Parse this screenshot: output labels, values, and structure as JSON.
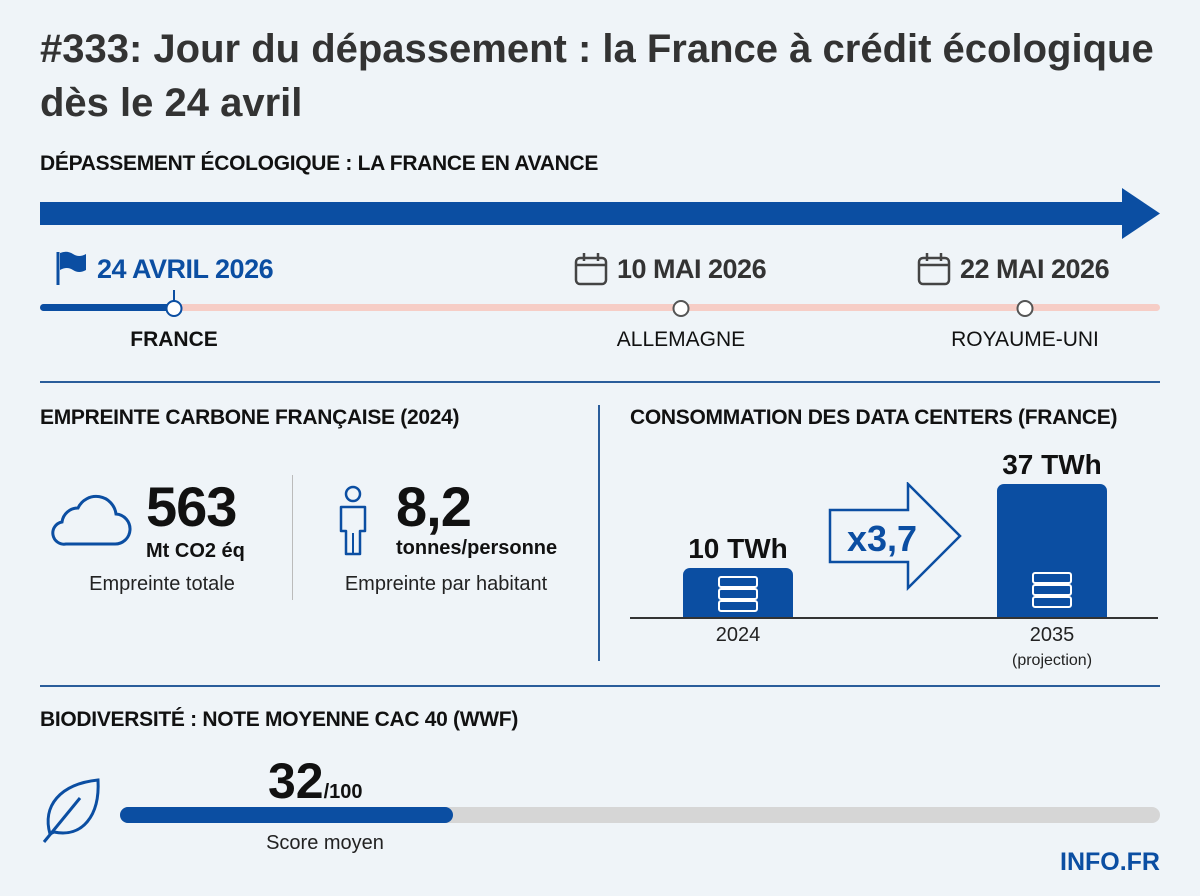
{
  "title": "#333: Jour du dépassement : la France à crédit écologique dès le 24 avril",
  "timeline": {
    "heading": "DÉPASSEMENT ÉCOLOGIQUE : LA FRANCE EN AVANCE",
    "events": [
      {
        "date": "24 AVRIL 2026",
        "country": "FRANCE",
        "icon": "flag-icon",
        "highlight": true
      },
      {
        "date": "10 MAI 2026",
        "country": "ALLEMAGNE",
        "icon": "calendar-icon"
      },
      {
        "date": "22 MAI 2026",
        "country": "ROYAUME-UNI",
        "icon": "calendar-icon"
      }
    ]
  },
  "carbon": {
    "heading": "EMPREINTE CARBONE FRANÇAISE (2024)",
    "total": {
      "value": "563",
      "unit": "Mt CO2 éq",
      "caption": "Empreinte totale",
      "icon": "cloud-icon"
    },
    "per_capita": {
      "value": "8,2",
      "unit": "tonnes/personne",
      "caption": "Empreinte par habitant",
      "icon": "person-icon"
    }
  },
  "datacenters": {
    "heading": "CONSOMMATION DES DATA CENTERS (FRANCE)",
    "multiplier": "x3,7",
    "bars": [
      {
        "label": "10 TWh",
        "value": 10,
        "year": "2024",
        "note": ""
      },
      {
        "label": "37 TWh",
        "value": 37,
        "year": "2035",
        "note": "(projection)"
      }
    ]
  },
  "biodiversity": {
    "heading": "BIODIVERSITÉ : NOTE MOYENNE CAC 40 (WWF)",
    "score": "32",
    "max": "/100",
    "score_value": 32,
    "caption": "Score moyen",
    "icon": "leaf-icon"
  },
  "brand": "INFO.FR",
  "colors": {
    "accent": "#0b4ea2",
    "track": "#f6cdc6",
    "progress_track": "#d6d6d6"
  }
}
